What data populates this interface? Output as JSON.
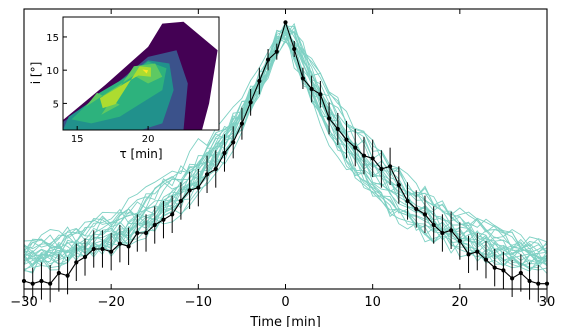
{
  "chart_data": [
    {
      "type": "line",
      "xlabel": "Time [min]",
      "ylabel": "",
      "xlim": [
        -30,
        30
      ],
      "ylim": [
        0,
        1.05
      ],
      "x_ticks": [
        -30,
        -20,
        -10,
        0,
        10,
        20,
        30
      ],
      "x_tick_labels": [
        "−30",
        "−20",
        "−10",
        "0",
        "10",
        "20",
        "30"
      ],
      "y_ticks_labeled": false,
      "grid": false,
      "x": [
        -30,
        -29,
        -28,
        -27,
        -26,
        -25,
        -24,
        -23,
        -22,
        -21,
        -20,
        -19,
        -18,
        -17,
        -16,
        -15,
        -14,
        -13,
        -12,
        -11,
        -10,
        -9,
        -8,
        -7,
        -6,
        -5,
        -4,
        -3,
        -2,
        -1,
        0,
        1,
        2,
        3,
        4,
        5,
        6,
        7,
        8,
        9,
        10,
        11,
        12,
        13,
        14,
        15,
        16,
        17,
        18,
        19,
        20,
        21,
        22,
        23,
        24,
        25,
        26,
        27,
        28,
        29,
        30
      ],
      "series": [
        {
          "values": [
            0.03,
            0.02,
            0.03,
            0.02,
            0.06,
            0.05,
            0.1,
            0.12,
            0.15,
            0.15,
            0.14,
            0.17,
            0.16,
            0.21,
            0.21,
            0.24,
            0.26,
            0.28,
            0.33,
            0.37,
            0.38,
            0.43,
            0.45,
            0.51,
            0.55,
            0.62,
            0.7,
            0.78,
            0.86,
            0.89,
            1.0,
            0.9,
            0.79,
            0.75,
            0.73,
            0.64,
            0.6,
            0.56,
            0.53,
            0.5,
            0.49,
            0.45,
            0.46,
            0.39,
            0.33,
            0.3,
            0.28,
            0.24,
            0.21,
            0.22,
            0.18,
            0.13,
            0.14,
            0.11,
            0.08,
            0.07,
            0.04,
            0.06,
            0.03,
            0.02,
            0.02
          ],
          "error": [
            0.07,
            0.06,
            0.07,
            0.07,
            0.07,
            0.07,
            0.07,
            0.07,
            0.07,
            0.07,
            0.07,
            0.07,
            0.07,
            0.07,
            0.07,
            0.07,
            0.07,
            0.07,
            0.07,
            0.07,
            0.07,
            0.07,
            0.07,
            0.07,
            0.06,
            0.06,
            0.05,
            0.05,
            0.04,
            0.03,
            0.0,
            0.03,
            0.04,
            0.05,
            0.05,
            0.06,
            0.06,
            0.07,
            0.07,
            0.07,
            0.07,
            0.07,
            0.07,
            0.07,
            0.07,
            0.07,
            0.07,
            0.07,
            0.07,
            0.07,
            0.07,
            0.07,
            0.07,
            0.07,
            0.07,
            0.07,
            0.07,
            0.07,
            0.07,
            0.07,
            0.07
          ],
          "color": "#000000"
        }
      ],
      "model_realizations": {
        "count": 25,
        "color": "#7fd1c4",
        "profile": "peak 1.0 at Time 0, decaying toward 0.05 at ±30 min"
      }
    },
    {
      "type": "heatmap",
      "xlabel": "τ [min]",
      "ylabel": "i [°]",
      "xlim": [
        14,
        25
      ],
      "ylim": [
        1,
        18
      ],
      "x_ticks": [
        15,
        20
      ],
      "y_ticks": [
        5,
        10,
        15
      ],
      "colormap": [
        "#440154",
        "#3b528b",
        "#21918c",
        "#2db27d",
        "#5ec962",
        "#addc30",
        "#fde725"
      ]
    }
  ]
}
